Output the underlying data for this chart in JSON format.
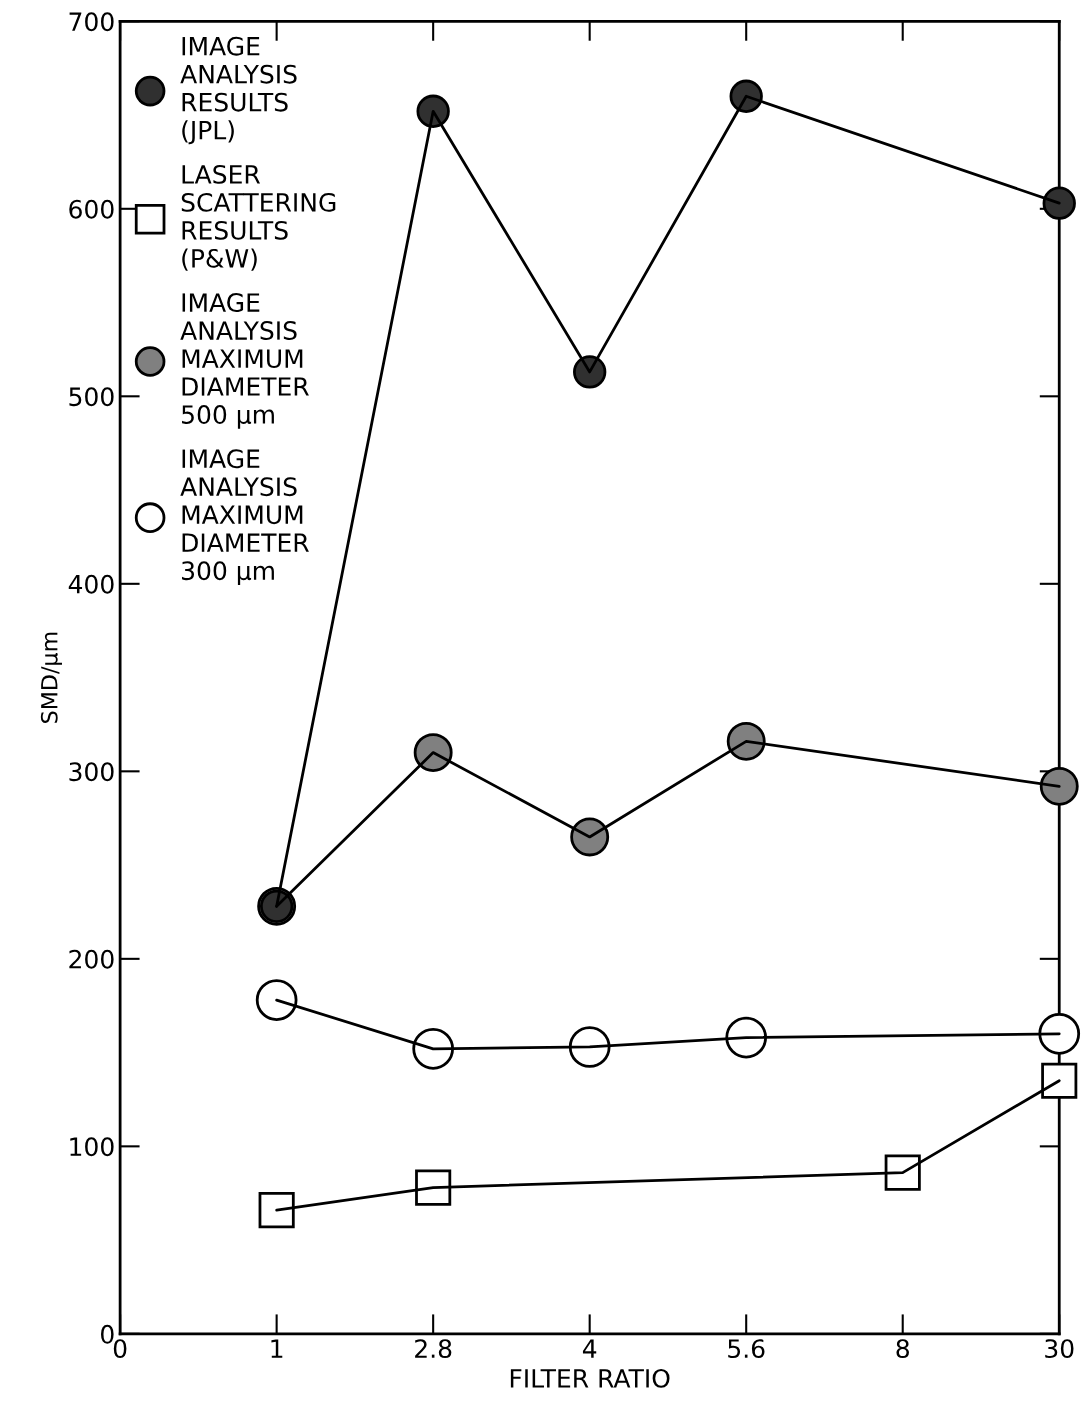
{
  "chart_data": {
    "type": "line",
    "xlabel": "FILTER RATIO",
    "ylabel": "SMD/μm",
    "categories": [
      "0",
      "1",
      "2.8",
      "4",
      "5.6",
      "8",
      "30"
    ],
    "ylim": [
      0,
      700
    ],
    "yticks": [
      0,
      100,
      200,
      300,
      400,
      500,
      600,
      700
    ],
    "grid": false,
    "legend": "top left",
    "line_style": "solid",
    "series": [
      {
        "name": "IMAGE\nANALYSIS\nRESULTS\n(JPL)",
        "color": "#303030",
        "marker": "circle",
        "x": [
          "1",
          "2.8",
          "4",
          "5.6",
          "30"
        ],
        "values": [
          228,
          652,
          513,
          660,
          603
        ]
      },
      {
        "name": "LASER\nSCATTERING\nRESULTS\n(P&W)",
        "color": "#ffffff",
        "marker": "square",
        "x": [
          "1",
          "2.8",
          "8",
          "30"
        ],
        "values": [
          66,
          78,
          86,
          135
        ]
      },
      {
        "name": "IMAGE\nANALYSIS\nMAXIMUM\nDIAMETER\n500 μm",
        "color": "#808080",
        "marker": "circle",
        "x": [
          "1",
          "2.8",
          "4",
          "5.6",
          "30"
        ],
        "values": [
          228,
          310,
          265,
          316,
          292
        ]
      },
      {
        "name": "IMAGE\nANALYSIS\nMAXIMUM\nDIAMETER\n300 μm",
        "color": "#ffffff",
        "marker": "circle",
        "x": [
          "1",
          "2.8",
          "4",
          "5.6",
          "30"
        ],
        "values": [
          178,
          152,
          153,
          158,
          160
        ]
      }
    ]
  }
}
